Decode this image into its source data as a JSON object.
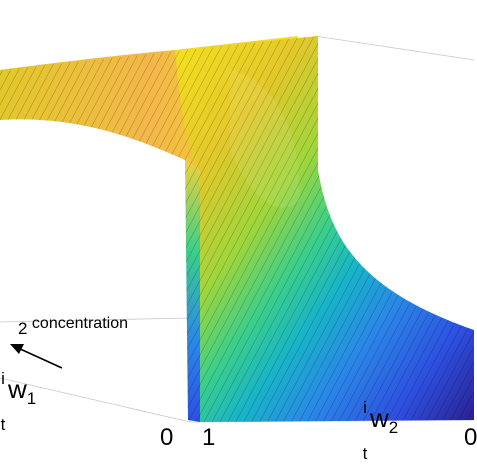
{
  "chart_data": {
    "type": "surface",
    "title": "",
    "axes": {
      "x_label": {
        "sup": "i",
        "sub": "t",
        "main": "w",
        "index": "1"
      },
      "y_label": {
        "sup": "i",
        "sub": "t",
        "main": "w",
        "index": "2"
      },
      "z_label": ""
    },
    "annotation": {
      "text": "concentration",
      "prefix": "2"
    },
    "ticks": {
      "x_axis": [
        "0"
      ],
      "y_axis": [
        "1",
        "0"
      ]
    },
    "surface": {
      "description_values": "saddle-shaped sheet bending from high (yellow) at back-left to low (blue) at front-right",
      "colormap": [
        "#2a1f8f",
        "#2d4fe0",
        "#2b86e8",
        "#18b4c8",
        "#3bcf8a",
        "#9fd63c",
        "#e3c82b",
        "#f7e11d"
      ],
      "z_range": [
        0,
        1
      ]
    },
    "grid": false
  }
}
